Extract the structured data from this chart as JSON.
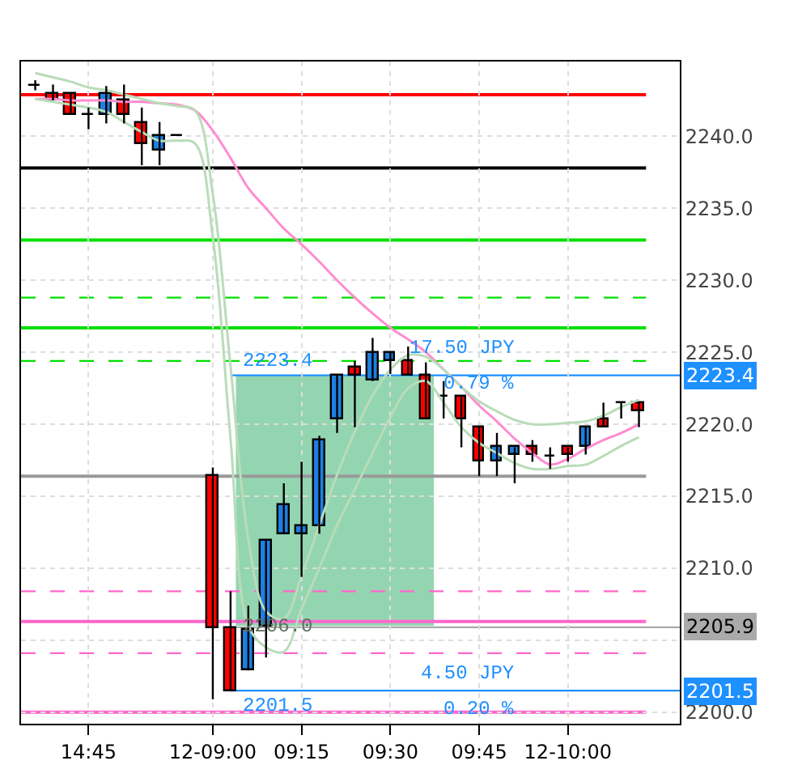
{
  "chart_data": {
    "type": "candlestick",
    "categories": [
      null,
      null,
      null,
      "14:45",
      null,
      null,
      null,
      null,
      null,
      null,
      "12-09:00",
      null,
      null,
      null,
      null,
      "09:15",
      null,
      null,
      null,
      null,
      "09:30",
      null,
      null,
      null,
      null,
      "09:45",
      null,
      null,
      null,
      null,
      "12-10:00",
      null,
      null,
      null,
      null
    ],
    "ohlc": [
      [
        2243.5,
        2243.9,
        2243.2,
        2243.5
      ],
      [
        2243.0,
        2243.6,
        2242.5,
        2242.5
      ],
      [
        2243.0,
        2243.0,
        2241.5,
        2241.5
      ],
      [
        2241.5,
        2242.0,
        2240.5,
        2241.5
      ],
      [
        2241.5,
        2243.5,
        2240.9,
        2243.0
      ],
      [
        2242.5,
        2243.6,
        2240.9,
        2241.5
      ],
      [
        2240.9,
        2242.0,
        2238.0,
        2239.5
      ],
      [
        2239.0,
        2241.0,
        2238.0,
        2240.0
      ],
      [
        2240.0,
        2240.0,
        2240.0,
        2240.0
      ],
      null,
      [
        2216.4,
        2217.0,
        2200.9,
        2205.8
      ],
      [
        2205.8,
        2208.4,
        2201.5,
        2201.5
      ],
      [
        2202.9,
        2207.4,
        2202.9,
        2205.7
      ],
      [
        2205.9,
        2211.9,
        2203.8,
        2211.9
      ],
      [
        2212.4,
        2215.9,
        2212.4,
        2214.4
      ],
      [
        2212.4,
        2217.4,
        2209.4,
        2212.9
      ],
      [
        2212.9,
        2219.2,
        2212.4,
        2218.9
      ],
      [
        2220.4,
        2223.4,
        2219.4,
        2223.4
      ],
      [
        2224.0,
        2224.4,
        2219.8,
        2223.4
      ],
      [
        2223.0,
        2226.0,
        2223.0,
        2225.0
      ],
      [
        2224.4,
        2225.0,
        2223.5,
        2225.0
      ],
      [
        2224.4,
        2225.4,
        2223.4,
        2223.4
      ],
      [
        2223.4,
        2224.3,
        2220.4,
        2220.4
      ],
      [
        2221.9,
        2223.0,
        2220.4,
        2221.9
      ],
      [
        2221.9,
        2221.9,
        2218.4,
        2220.4
      ],
      [
        2219.8,
        2219.8,
        2216.4,
        2217.4
      ],
      [
        2217.4,
        2219.4,
        2216.4,
        2218.4
      ],
      [
        2217.9,
        2218.4,
        2215.9,
        2218.4
      ],
      [
        2218.4,
        2218.9,
        2217.4,
        2217.9
      ],
      [
        2217.8,
        2218.4,
        2216.9,
        2217.8
      ],
      [
        2218.4,
        2218.4,
        2217.4,
        2217.9
      ],
      [
        2218.4,
        2219.8,
        2217.9,
        2219.8
      ],
      [
        2220.4,
        2221.5,
        2219.8,
        2219.8
      ],
      [
        2221.5,
        2221.5,
        2220.4,
        2221.5
      ],
      [
        2221.5,
        2221.5,
        2219.8,
        2220.9
      ]
    ],
    "colors": [
      "#000000",
      "#ff0000",
      "#ff0000",
      "#000000",
      "#1e7fe0",
      "#ff0000",
      "#ff0000",
      "#1e7fe0",
      "#000000",
      null,
      "#ff0000",
      "#ff0000",
      "#1e7fe0",
      "#1e7fe0",
      "#1e7fe0",
      "#1e7fe0",
      "#1e7fe0",
      "#1e7fe0",
      "#ff0000",
      "#1e7fe0",
      "#1e7fe0",
      "#ff0000",
      "#ff0000",
      "#000000",
      "#ff0000",
      "#ff0000",
      "#1e7fe0",
      "#1e7fe0",
      "#ff0000",
      "#000000",
      "#ff0000",
      "#1e7fe0",
      "#ff0000",
      "#000000",
      "#ff0000"
    ],
    "series": [
      {
        "type": "line",
        "color": "#ff8ccf",
        "values": [
          2242.6,
          2242.6,
          2242.5,
          2242.5,
          2242.5,
          2242.4,
          2242.4,
          2242.3,
          2242.2,
          2241.8,
          2240.4,
          2238.5,
          2236.4,
          2235.0,
          2233.6,
          2232.5,
          2231.3,
          2230.0,
          2228.8,
          2227.7,
          2226.7,
          2225.9,
          2225.0,
          2223.8,
          2222.6,
          2221.3,
          2220.2,
          2219.0,
          2218.0,
          2217.2,
          2217.6,
          2218.3,
          2218.9,
          2219.4,
          2220.0
        ]
      },
      {
        "type": "line",
        "color": "#b9dcb9",
        "values": [
          2244.4,
          2244.1,
          2243.8,
          2243.4,
          2243.2,
          2242.9,
          2242.6,
          2242.3,
          2242.1,
          2241.8,
          2236.0,
          2224.0,
          2212.0,
          2207.0,
          2206.5,
          2209.5,
          2213.0,
          2216.5,
          2219.5,
          2222.0,
          2223.8,
          2224.8,
          2224.7,
          2223.8,
          2222.6,
          2221.6,
          2220.9,
          2220.3,
          2220.0,
          2220.0,
          2220.1,
          2220.2,
          2220.6,
          2221.2,
          2221.7
        ]
      },
      {
        "type": "line",
        "color": "#b9dcb9",
        "values": [
          2242.6,
          2242.4,
          2242.2,
          2242.0,
          2241.7,
          2241.0,
          2240.3,
          2239.7,
          2239.7,
          2239.5,
          2233.0,
          2219.0,
          2206.0,
          2204.5,
          2204.2,
          2207.2,
          2210.0,
          2213.0,
          2215.5,
          2218.0,
          2220.5,
          2222.5,
          2223.0,
          2221.5,
          2219.8,
          2218.7,
          2218.0,
          2217.3,
          2216.9,
          2216.9,
          2217.1,
          2217.2,
          2217.8,
          2218.5,
          2219.1
        ]
      }
    ],
    "ylim": [
      2199.2,
      2245.2
    ],
    "yticks": [
      {
        "value": 2200,
        "label": "2200.0"
      },
      {
        "value": 2205,
        "label": null
      },
      {
        "value": 2210,
        "label": "2210.0"
      },
      {
        "value": 2215,
        "label": "2215.0"
      },
      {
        "value": 2220,
        "label": "2220.0"
      },
      {
        "value": 2225,
        "label": "2225.0"
      },
      {
        "value": 2230,
        "label": "2230.0"
      },
      {
        "value": 2235,
        "label": "2235.0"
      },
      {
        "value": 2240,
        "label": "2240.0"
      }
    ],
    "grid": true,
    "ref_lines": [
      {
        "axis": "y",
        "value": 2242.9,
        "color": "#ff0000",
        "line_style": "solid"
      },
      {
        "axis": "y",
        "value": 2237.8,
        "color": "#000000",
        "line_style": "solid"
      },
      {
        "axis": "y",
        "value": 2232.8,
        "color": "#00e000",
        "line_style": "solid"
      },
      {
        "axis": "y",
        "value": 2228.8,
        "color": "#00e000",
        "line_style": "dashed"
      },
      {
        "axis": "y",
        "value": 2226.7,
        "color": "#00e000",
        "line_style": "solid"
      },
      {
        "axis": "y",
        "value": 2224.4,
        "color": "#00e000",
        "line_style": "dashed"
      },
      {
        "axis": "y",
        "value": 2216.4,
        "color": "#999999",
        "line_style": "solid"
      },
      {
        "axis": "y",
        "value": 2208.4,
        "color": "#ff66cc",
        "line_style": "dashed"
      },
      {
        "axis": "y",
        "value": 2206.3,
        "color": "#ff66cc",
        "line_style": "solid"
      },
      {
        "axis": "y",
        "value": 2204.1,
        "color": "#ff66cc",
        "line_style": "dashed"
      },
      {
        "axis": "y",
        "value": 2200.0,
        "color": "#ff66cc",
        "line_style": "solid"
      },
      {
        "axis": "y",
        "value": 2223.4,
        "color": "#1e90ff",
        "line_style": "solid",
        "label": "2223.4"
      },
      {
        "axis": "y",
        "value": 2205.9,
        "color": "#aaaaaa",
        "line_style": "solid",
        "label": "2205.9"
      },
      {
        "axis": "y",
        "value": 2201.5,
        "color": "#1e90ff",
        "line_style": "solid",
        "label": "2201.5"
      }
    ],
    "bands": [
      {
        "axis": "y",
        "from": 2206.0,
        "to": 2223.4,
        "color": "#3cb371"
      }
    ],
    "annotations": [
      {
        "text": "2223.4",
        "y": 2223.4
      },
      {
        "text": "2206.0",
        "y": 2206.0
      },
      {
        "text": "2201.5",
        "y": 2201.5
      },
      "17.50 JPY",
      "0.79 %",
      "4.50 JPY",
      "0.20 %"
    ]
  }
}
